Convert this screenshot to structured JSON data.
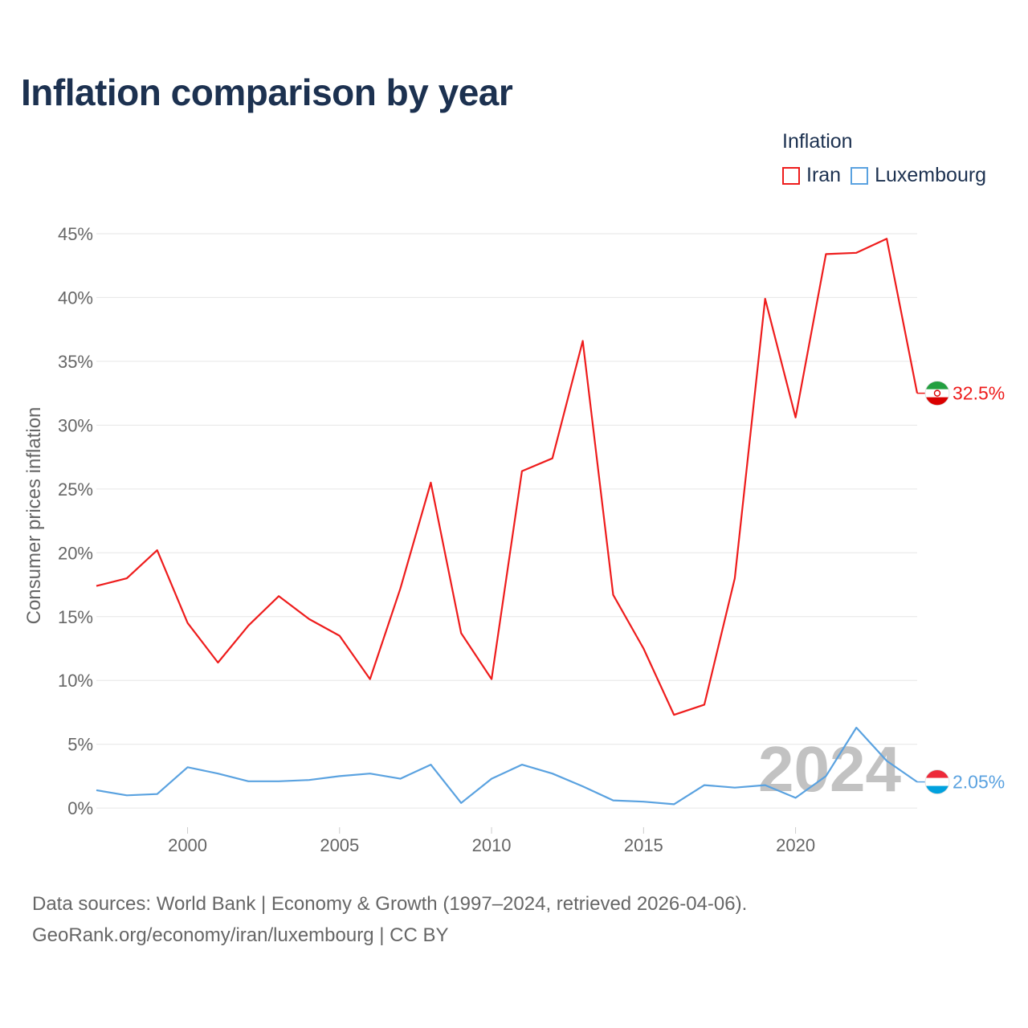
{
  "title": "Inflation comparison by year",
  "legend": {
    "title": "Inflation",
    "items": [
      {
        "label": "Iran",
        "color": "#ee1c1c"
      },
      {
        "label": "Luxembourg",
        "color": "#5aa2e0"
      }
    ]
  },
  "footer": {
    "line1": "Data sources: World Bank | Economy & Growth (1997–2024, retrieved 2026-04-06).",
    "line2": "GeoRank.org/economy/iran/luxembourg | CC BY"
  },
  "chart_data": {
    "type": "line",
    "ylabel": "Consumer prices inflation",
    "xlabel": "",
    "x": [
      1997,
      1998,
      1999,
      2000,
      2001,
      2002,
      2003,
      2004,
      2005,
      2006,
      2007,
      2008,
      2009,
      2010,
      2011,
      2012,
      2013,
      2014,
      2015,
      2016,
      2017,
      2018,
      2019,
      2020,
      2021,
      2022,
      2023,
      2024
    ],
    "xlim": [
      1997,
      2024
    ],
    "ylim": [
      -1.5,
      45.5
    ],
    "yticks": [
      0,
      5,
      10,
      15,
      20,
      25,
      30,
      35,
      40,
      45
    ],
    "ytick_labels": [
      "0%",
      "5%",
      "10%",
      "15%",
      "20%",
      "25%",
      "30%",
      "35%",
      "40%",
      "45%"
    ],
    "xticks": [
      2000,
      2005,
      2010,
      2015,
      2020
    ],
    "xtick_labels": [
      "2000",
      "2005",
      "2010",
      "2015",
      "2020"
    ],
    "watermark_year": "2024",
    "series": [
      {
        "name": "Iran",
        "color": "#ee1c1c",
        "end_label": "32.5%",
        "flag": "iran-flag-icon",
        "values": [
          17.4,
          18.0,
          20.2,
          14.5,
          11.4,
          14.3,
          16.6,
          14.8,
          13.5,
          10.1,
          17.2,
          25.5,
          13.7,
          10.1,
          26.4,
          27.4,
          36.6,
          16.7,
          12.5,
          7.3,
          8.1,
          18.0,
          39.9,
          30.6,
          43.4,
          43.5,
          44.6,
          32.5
        ]
      },
      {
        "name": "Luxembourg",
        "color": "#5aa2e0",
        "end_label": "2.05%",
        "flag": "luxembourg-flag-icon",
        "values": [
          1.4,
          1.0,
          1.1,
          3.2,
          2.7,
          2.1,
          2.1,
          2.2,
          2.5,
          2.7,
          2.3,
          3.4,
          0.4,
          2.3,
          3.4,
          2.7,
          1.7,
          0.6,
          0.5,
          0.3,
          1.8,
          1.6,
          1.8,
          0.8,
          2.5,
          6.3,
          3.7,
          2.05
        ]
      }
    ]
  }
}
